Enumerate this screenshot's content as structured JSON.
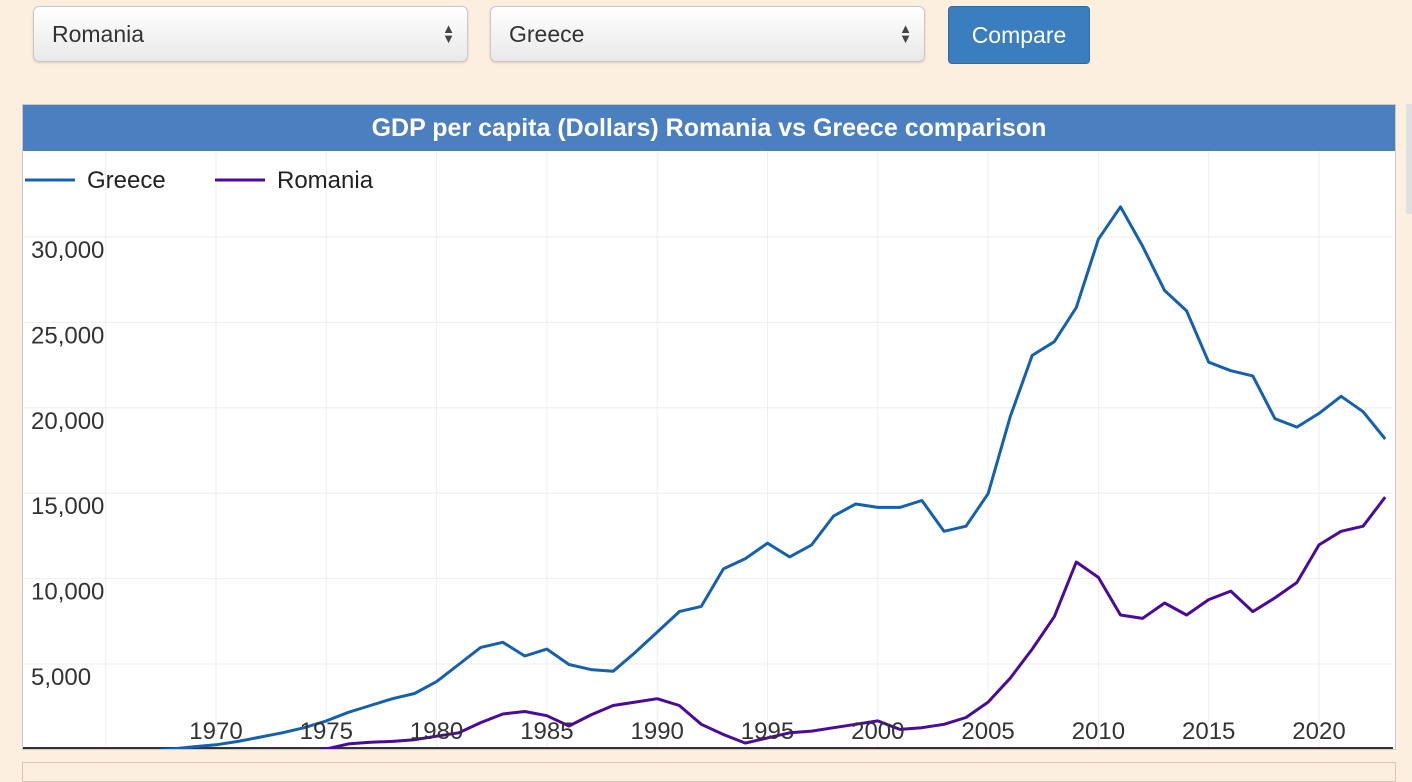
{
  "controls": {
    "country1": "Romania",
    "country2": "Greece",
    "compare_label": "Compare"
  },
  "chart_data": {
    "type": "line",
    "title": "GDP per capita (Dollars) Romania vs Greece comparison",
    "xlabel": "",
    "ylabel": "",
    "xlim": [
      1960,
      2023
    ],
    "ylim": [
      0,
      32000
    ],
    "y_ticks": [
      5000,
      10000,
      15000,
      20000,
      25000,
      30000
    ],
    "y_tick_labels": [
      "5,000",
      "10,000",
      "15,000",
      "20,000",
      "25,000",
      "30,000"
    ],
    "x_ticks": [
      1970,
      1975,
      1980,
      1985,
      1990,
      1995,
      2000,
      2005,
      2010,
      2015,
      2020
    ],
    "x_tick_labels": [
      "1970",
      "1975",
      "1980",
      "1985",
      "1990",
      "1995",
      "2000",
      "2005",
      "2010",
      "2015",
      "2020"
    ],
    "legend_position": "top-left",
    "grid": true,
    "series": [
      {
        "name": "Greece",
        "color": "#1660b0",
        "x": [
          1960,
          1961,
          1962,
          1963,
          1964,
          1965,
          1966,
          1967,
          1968,
          1969,
          1970,
          1971,
          1972,
          1973,
          1974,
          1975,
          1976,
          1977,
          1978,
          1979,
          1980,
          1981,
          1982,
          1983,
          1984,
          1985,
          1986,
          1987,
          1988,
          1989,
          1990,
          1991,
          1992,
          1993,
          1994,
          1995,
          1996,
          1997,
          1998,
          1999,
          2000,
          2001,
          2002,
          2003,
          2004,
          2005,
          2006,
          2007,
          2008,
          2009,
          2010,
          2011,
          2012,
          2013,
          2014,
          2015,
          2016,
          2017,
          2018,
          2019,
          2020,
          2021,
          2022,
          2023
        ],
        "y": [
          520,
          620,
          680,
          740,
          830,
          920,
          1020,
          1120,
          1250,
          1380,
          1500,
          1700,
          1950,
          2200,
          2500,
          2900,
          3400,
          3800,
          4200,
          4500,
          5200,
          6200,
          7200,
          7500,
          6700,
          7100,
          6200,
          5900,
          5800,
          6900,
          8100,
          9300,
          9600,
          11800,
          12400,
          13300,
          12500,
          13200,
          14900,
          15600,
          15400,
          15400,
          15800,
          14000,
          14300,
          16200,
          20700,
          24300,
          25100,
          27100,
          31100,
          33000,
          30700,
          28100,
          26900,
          23900,
          23400,
          23100,
          20600,
          20100,
          20900,
          21900,
          21000,
          19400
        ]
      },
      {
        "name": "Romania",
        "color": "#4b0b99",
        "x": [
          1973,
          1974,
          1975,
          1976,
          1977,
          1978,
          1979,
          1980,
          1981,
          1982,
          1983,
          1984,
          1985,
          1986,
          1987,
          1988,
          1989,
          1990,
          1991,
          1992,
          1993,
          1994,
          1995,
          1996,
          1997,
          1998,
          1999,
          2000,
          2001,
          2002,
          2003,
          2004,
          2005,
          2006,
          2007,
          2008,
          2009,
          2010,
          2011,
          2012,
          2013,
          2014,
          2015,
          2016,
          2017,
          2018,
          2019,
          2020,
          2021,
          2022,
          2023
        ],
        "y": [
          600,
          1000,
          1250,
          1550,
          1650,
          1700,
          1800,
          2000,
          2200,
          2800,
          3300,
          3450,
          3200,
          2600,
          3250,
          3800,
          4000,
          4200,
          3800,
          2700,
          2100,
          1600,
          1900,
          2200,
          2300,
          2500,
          2700,
          2900,
          2400,
          2500,
          2700,
          3100,
          4000,
          5400,
          7100,
          9000,
          12200,
          11300,
          9100,
          8900,
          9800,
          9100,
          10000,
          10500,
          9300,
          10100,
          11000,
          13200,
          14000,
          14300,
          16000
        ]
      }
    ]
  }
}
